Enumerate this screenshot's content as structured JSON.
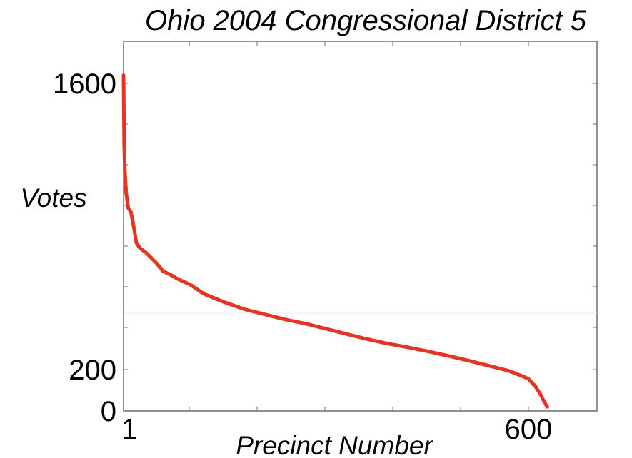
{
  "chart_data": {
    "type": "line",
    "title": "Ohio 2004 Congressional District 5",
    "xlabel": "Precinct Number",
    "ylabel": "Votes",
    "xlim": [
      1,
      690
    ],
    "ylim": [
      0,
      1700
    ],
    "x_ticks": [
      {
        "value": 1,
        "label": "1"
      },
      {
        "value": 600,
        "label": "600"
      }
    ],
    "y_ticks": [
      {
        "value": 0,
        "label": "0"
      },
      {
        "value": 200,
        "label": "200"
      },
      {
        "value": 1600,
        "label": "1600"
      }
    ],
    "grid": false,
    "legend": "none",
    "series": [
      {
        "color": "#e53424",
        "x": [
          1,
          2,
          3,
          5,
          8,
          12,
          16,
          20,
          25,
          35,
          50,
          60,
          70,
          80,
          100,
          120,
          150,
          180,
          210,
          240,
          270,
          300,
          330,
          360,
          390,
          420,
          450,
          480,
          510,
          540,
          570,
          590,
          600,
          610,
          618,
          624,
          628
        ],
        "y": [
          1640,
          1300,
          1170,
          1060,
          990,
          970,
          900,
          820,
          795,
          770,
          720,
          680,
          665,
          645,
          615,
          570,
          530,
          495,
          470,
          445,
          425,
          400,
          375,
          350,
          328,
          310,
          290,
          268,
          245,
          220,
          195,
          170,
          155,
          120,
          80,
          40,
          20
        ]
      }
    ]
  }
}
